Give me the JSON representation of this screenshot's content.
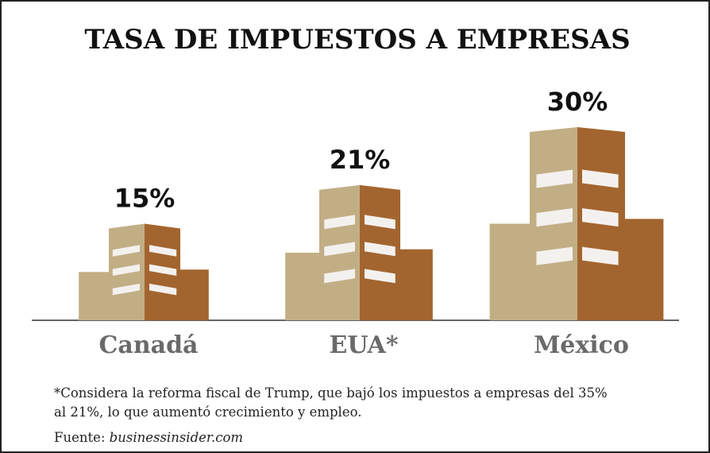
{
  "chart_data": {
    "type": "bar",
    "title": "TASA DE IMPUESTOS A EMPRESAS",
    "categories": [
      "Canadá",
      "EUA*",
      "México"
    ],
    "values": [
      15,
      21,
      30
    ],
    "value_labels": [
      "15%",
      "21%",
      "30%"
    ],
    "colors": {
      "light": "#c2ae85",
      "dark": "#a3652f",
      "window": "#f3f1ee"
    },
    "note": [
      "*Considera la reforma fiscal de Trump, que bajó los impuestos a empresas del 35%",
      "al 21%, lo que aumentó crecimiento y empleo."
    ],
    "source_label": "Fuente:",
    "source": "businessinsider.com"
  }
}
